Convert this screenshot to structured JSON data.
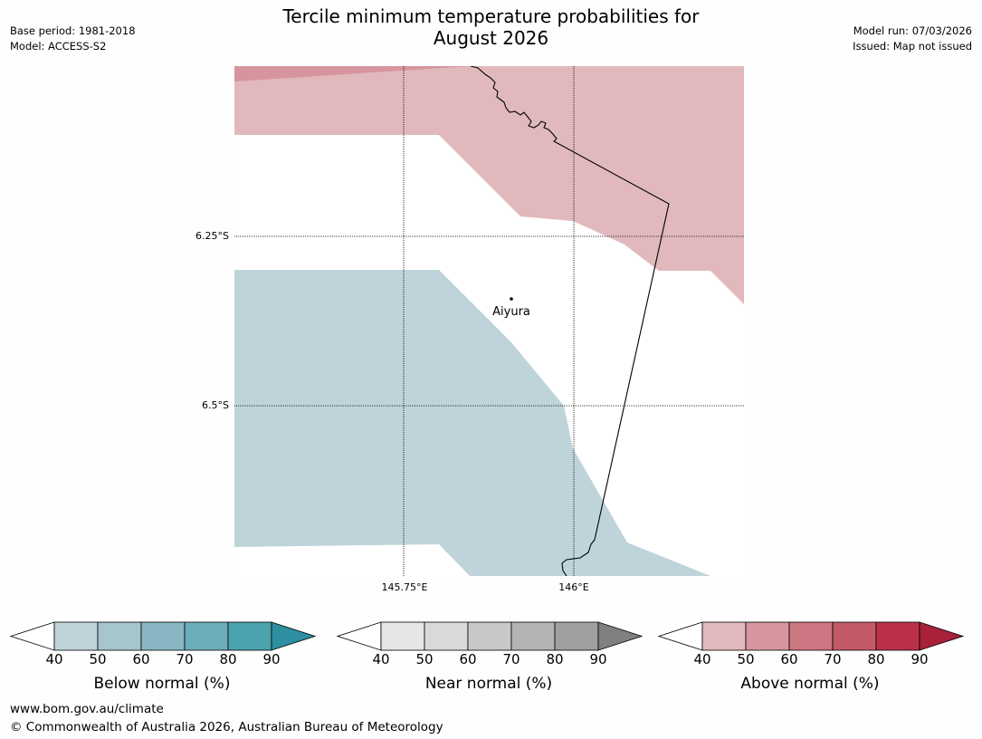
{
  "header": {
    "title_line1": "Tercile minimum temperature probabilities for",
    "title_line2": "August 2026",
    "base_period": "Base period: 1981-2018",
    "model": "Model: ACCESS-S2",
    "model_run": "Model run: 07/03/2026",
    "issued": "Issued: Map not issued"
  },
  "map": {
    "lat_labels": [
      "6.25°S",
      "6.5°S"
    ],
    "lon_labels": [
      "145.75°E",
      "146°E"
    ],
    "place": {
      "name": "Aiyura"
    },
    "region_colors": {
      "above_40_50": "#e1b9bd",
      "above_50_60": "#d6959e",
      "below_40_50": "#bfd4da",
      "background": "#ffffff"
    }
  },
  "colorbars": [
    {
      "caption": "Below normal (%)",
      "ticks": [
        "40",
        "50",
        "60",
        "70",
        "80",
        "90"
      ],
      "colors": [
        "#bfd4da",
        "#a6c5cc",
        "#88b6c2",
        "#6cadb9",
        "#4aa2ae",
        "#2d8f9f"
      ]
    },
    {
      "caption": "Near normal (%)",
      "ticks": [
        "40",
        "50",
        "60",
        "70",
        "80",
        "90"
      ],
      "colors": [
        "#e6e6e6",
        "#d9d9d9",
        "#c8c8c8",
        "#b4b4b4",
        "#a0a0a0",
        "#808080"
      ]
    },
    {
      "caption": "Above normal (%)",
      "ticks": [
        "40",
        "50",
        "60",
        "70",
        "80",
        "90"
      ],
      "colors": [
        "#e1b9bd",
        "#d6959e",
        "#cb7680",
        "#c45a67",
        "#bb3149",
        "#a8203a"
      ]
    }
  ],
  "footer": {
    "website": "www.bom.gov.au/climate",
    "copyright": "© Commonwealth of Australia 2026, Australian Bureau of Meteorology"
  }
}
